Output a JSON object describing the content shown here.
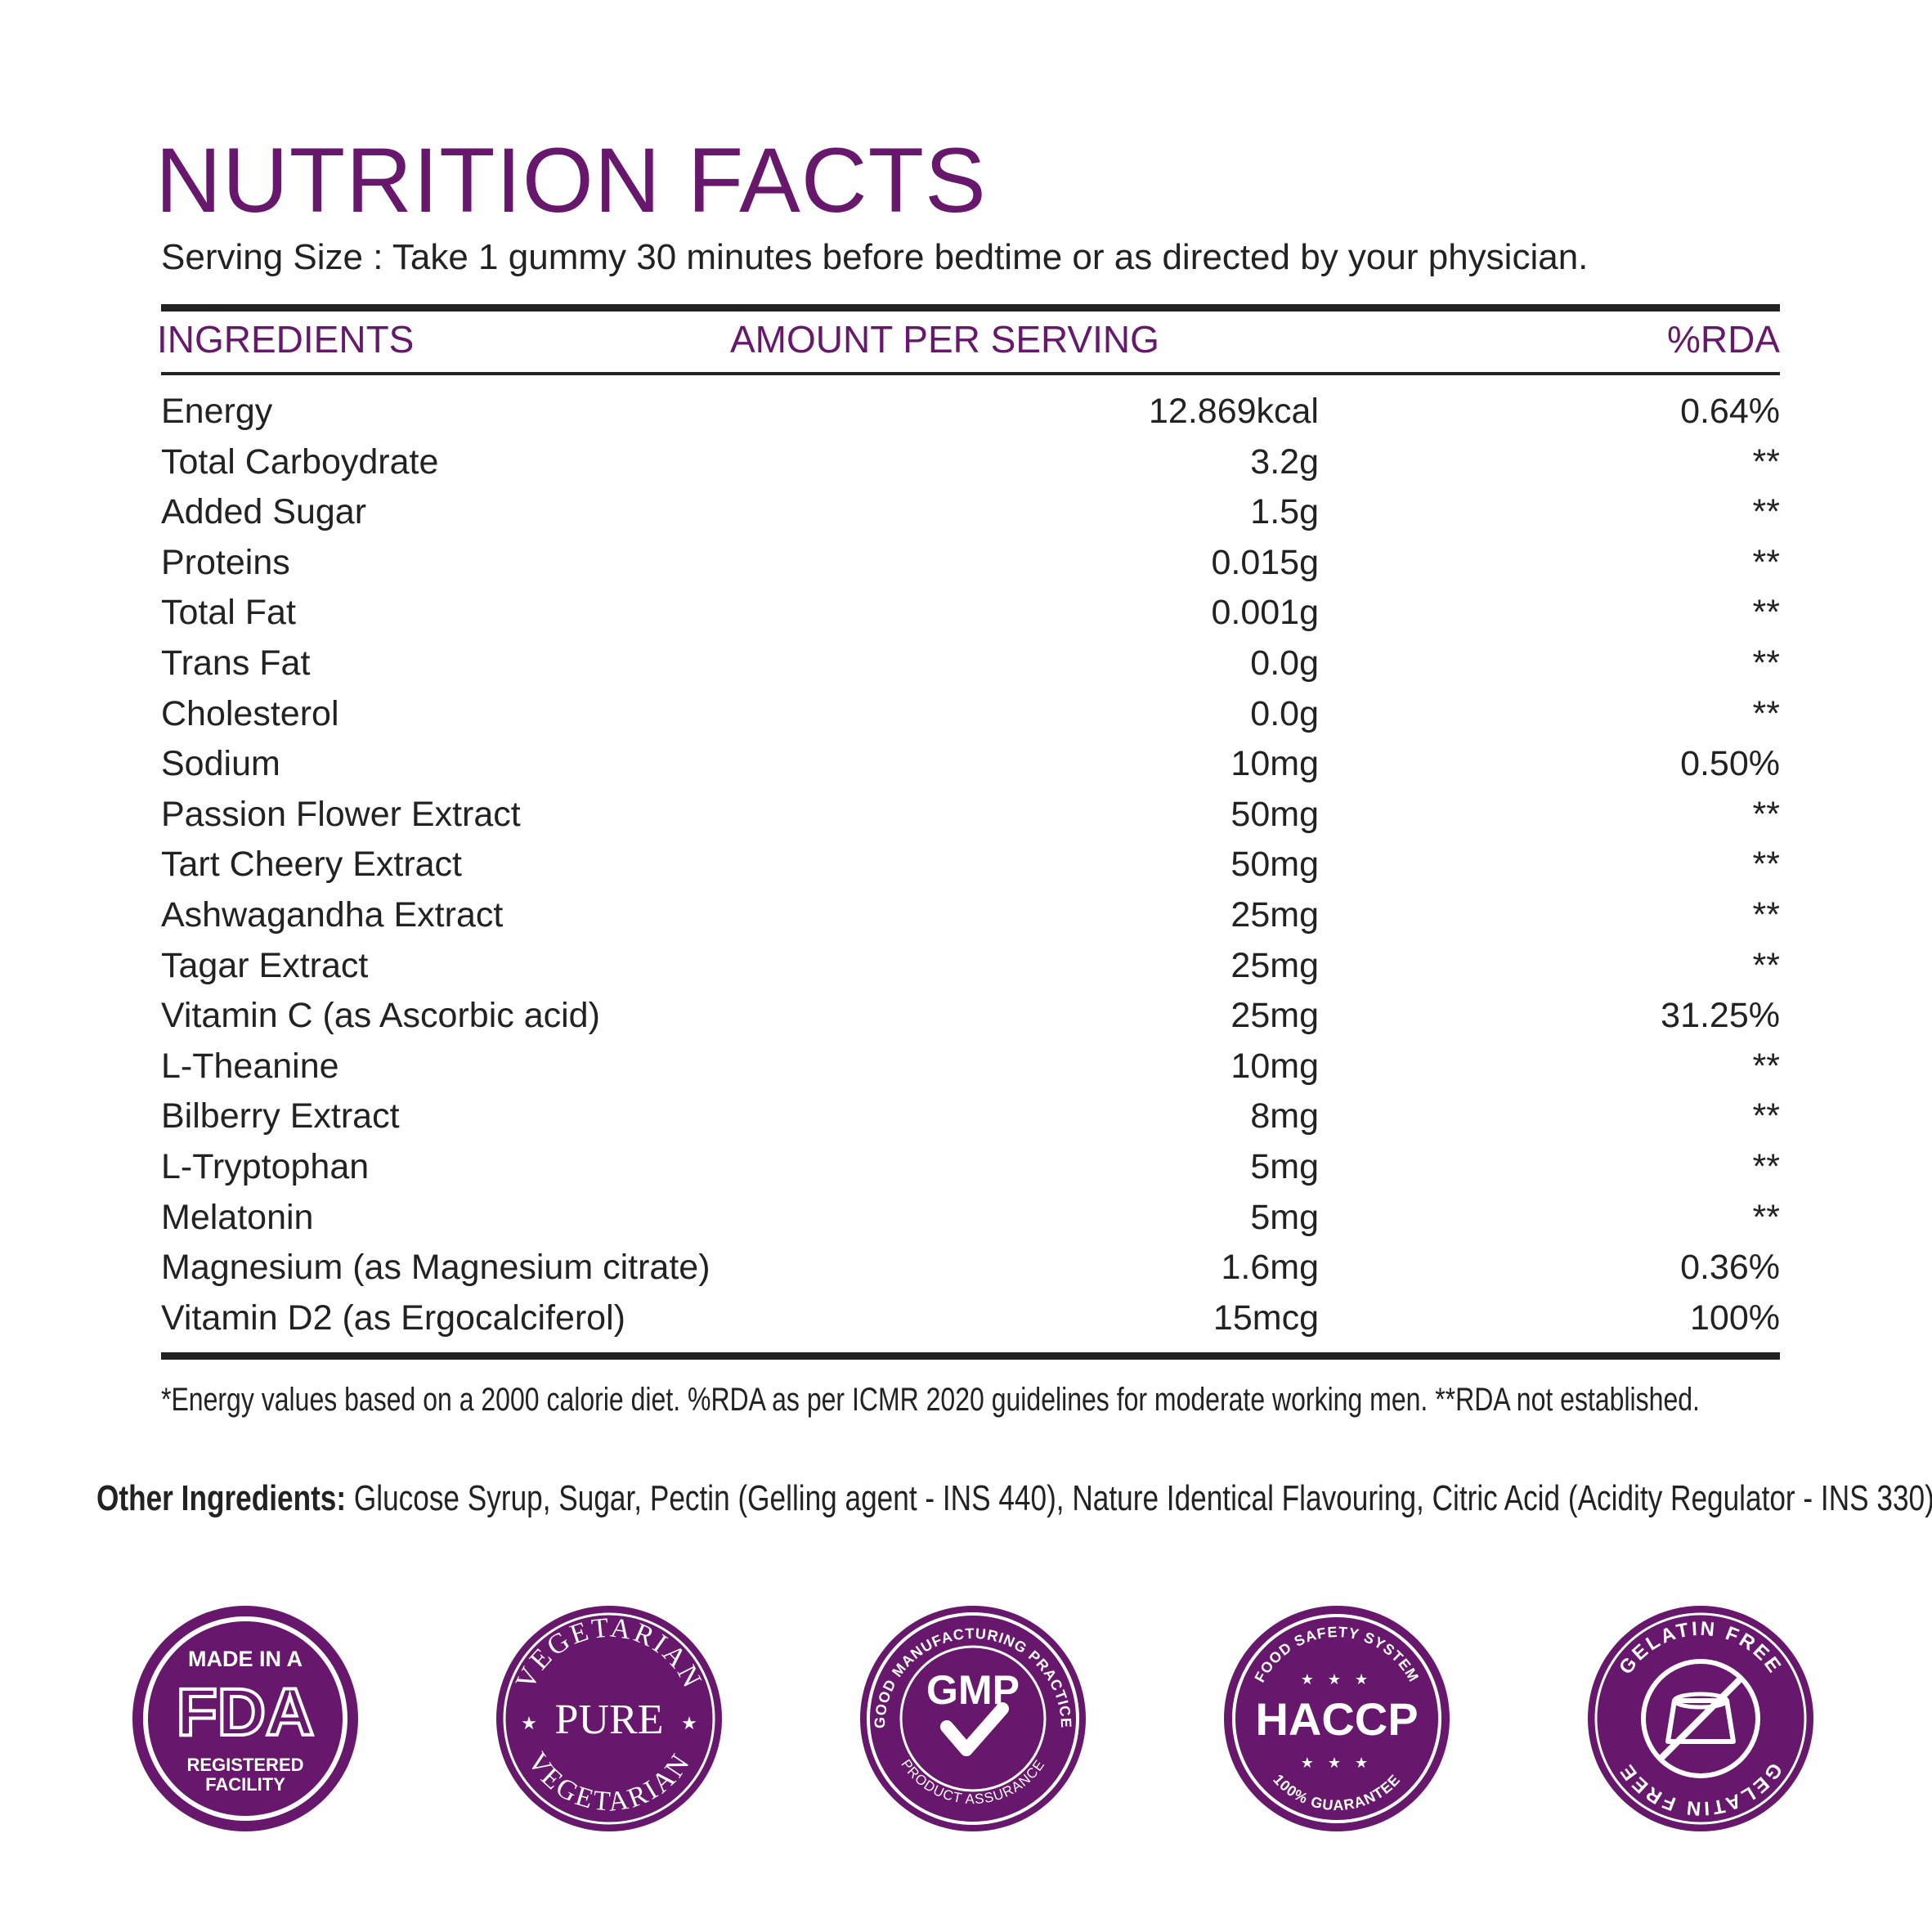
{
  "title": "NUTRITION FACTS",
  "serving_size": "Serving Size : Take 1 gummy 30 minutes before bedtime or as directed by your physician.",
  "colors": {
    "accent": "#67176c",
    "text": "#222222",
    "rule": "#222222"
  },
  "table": {
    "headers": {
      "ingredient": "INGREDIENTS",
      "amount": "AMOUNT PER SERVING",
      "rda": "%RDA"
    },
    "rows": [
      {
        "ingredient": "Energy",
        "amount": "12.869kcal",
        "rda": "0.64%"
      },
      {
        "ingredient": "Total Carboydrate",
        "amount": "3.2g",
        "rda": "**"
      },
      {
        "ingredient": "Added Sugar",
        "amount": "1.5g",
        "rda": "**"
      },
      {
        "ingredient": "Proteins",
        "amount": "0.015g",
        "rda": "**"
      },
      {
        "ingredient": "Total Fat",
        "amount": "0.001g",
        "rda": "**"
      },
      {
        "ingredient": "Trans Fat",
        "amount": "0.0g",
        "rda": "**"
      },
      {
        "ingredient": "Cholesterol",
        "amount": "0.0g",
        "rda": "**"
      },
      {
        "ingredient": "Sodium",
        "amount": "10mg",
        "rda": "0.50%"
      },
      {
        "ingredient": "Passion Flower Extract",
        "amount": "50mg",
        "rda": "**"
      },
      {
        "ingredient": "Tart Cheery Extract",
        "amount": "50mg",
        "rda": "**"
      },
      {
        "ingredient": "Ashwagandha Extract",
        "amount": "25mg",
        "rda": "**"
      },
      {
        "ingredient": "Tagar Extract",
        "amount": "25mg",
        "rda": "**"
      },
      {
        "ingredient": "Vitamin C (as Ascorbic acid)",
        "amount": "25mg",
        "rda": "31.25%"
      },
      {
        "ingredient": "L-Theanine",
        "amount": "10mg",
        "rda": "**"
      },
      {
        "ingredient": "Bilberry Extract",
        "amount": "8mg",
        "rda": "**"
      },
      {
        "ingredient": "L-Tryptophan",
        "amount": "5mg",
        "rda": "**"
      },
      {
        "ingredient": "Melatonin",
        "amount": "5mg",
        "rda": "**"
      },
      {
        "ingredient": "Magnesium (as Magnesium citrate)",
        "amount": "1.6mg",
        "rda": "0.36%"
      },
      {
        "ingredient": "Vitamin D2 (as Ergocalciferol)",
        "amount": "15mcg",
        "rda": "100%"
      }
    ]
  },
  "footnote": "*Energy values based on a 2000 calorie diet. %RDA as per ICMR 2020 guidelines for moderate working men. **RDA not established.",
  "other_ingredients": {
    "label": "Other Ingredients:",
    "text": " Glucose Syrup, Sugar, Pectin (Gelling agent - INS 440), Nature Identical Flavouring, Citric Acid (Acidity Regulator - INS 330)"
  },
  "badges": {
    "fda": {
      "top": "MADE IN A",
      "mark": "FDA",
      "bottom1": "REGISTERED",
      "bottom2": "FACILITY",
      "icon": "fda-badge-icon"
    },
    "vegetarian": {
      "ring_top": "VEGETARIAN",
      "ring_bottom": "VEGETARIAN",
      "center": "PURE",
      "icon": "vegetarian-badge-icon"
    },
    "gmp": {
      "ring_top": "GOOD MANUFACTURING PRACTICE",
      "center": "GMP",
      "ring_bottom": "PRODUCT ASSURANCE",
      "icon": "gmp-badge-icon"
    },
    "haccp": {
      "ring_top": "FOOD SAFETY SYSTEM",
      "center": "HACCP",
      "ring_bottom": "100% GUARANTEE",
      "icon": "haccp-badge-icon"
    },
    "gelatin": {
      "ring_top": "GELATIN FREE",
      "ring_bottom": "GELATIN FREE",
      "icon": "gelatin-free-badge-icon"
    }
  }
}
